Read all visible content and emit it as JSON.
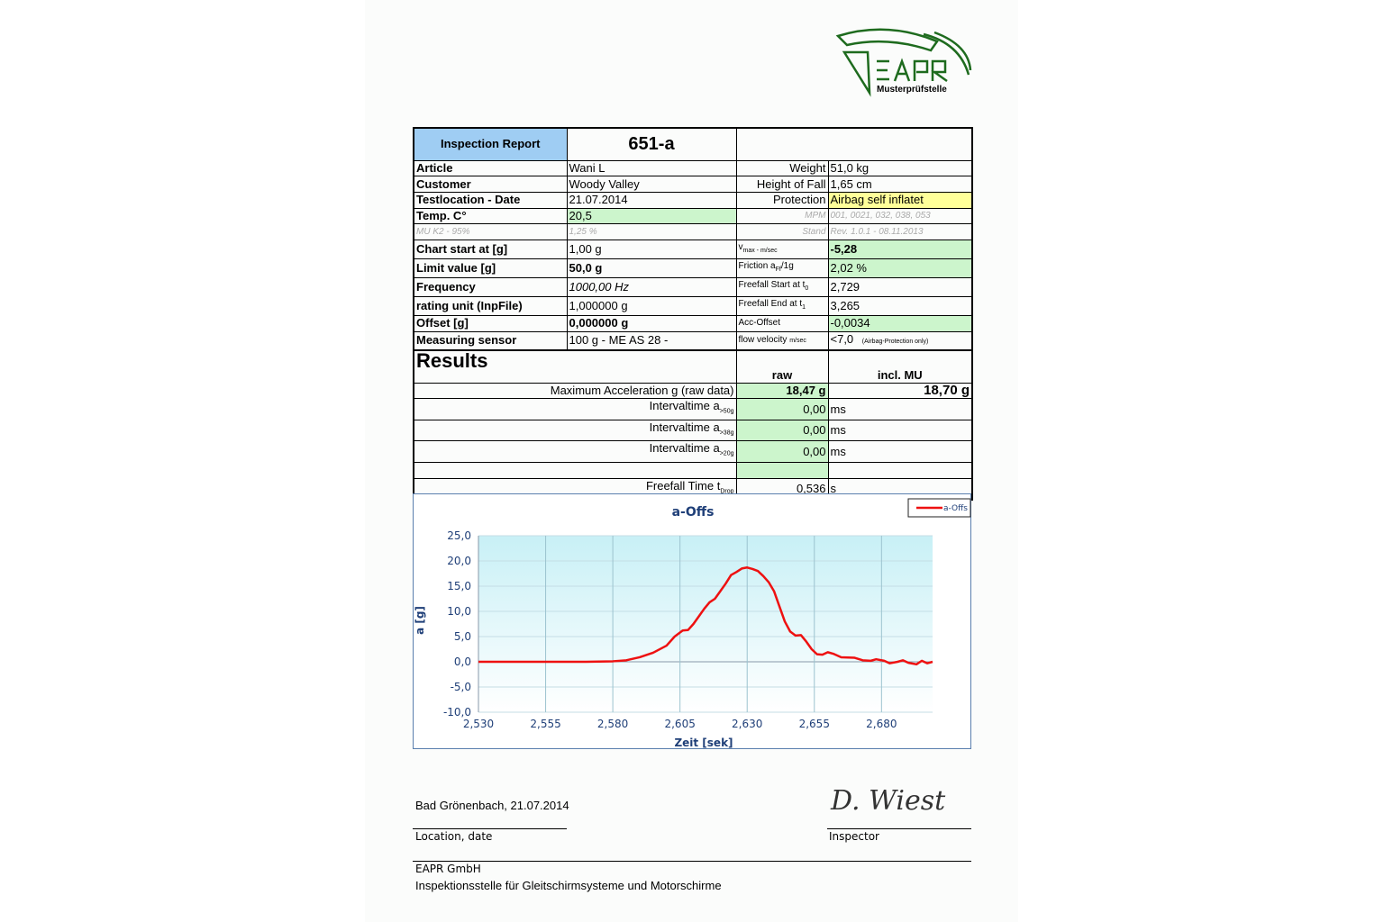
{
  "logo": {
    "text": "EAPR",
    "subtitle": "Musterprüfstelle",
    "color": "#1e6b1e"
  },
  "header": {
    "title": "Inspection Report",
    "number": "651-a"
  },
  "info": {
    "article": {
      "label": "Article",
      "value": "Wani L",
      "rlabel": "Weight",
      "rvalue": "51,0 kg"
    },
    "customer": {
      "label": "Customer",
      "value": "Woody Valley",
      "rlabel": "Height of Fall",
      "rvalue": "1,65 cm"
    },
    "location": {
      "label": "Testlocation - Date",
      "value": "21.07.2014",
      "rlabel": "Protection",
      "rvalue": "Airbag self inflatet"
    },
    "temp": {
      "label": "Temp. C°",
      "value": "20,5",
      "rlabel": "MPM",
      "rvalue": "001, 0021, 032, 038, 053"
    },
    "mu": {
      "label": "MU K2 - 95%",
      "value": "1,25 %",
      "rlabel": "Stand",
      "rvalue": "Rev. 1.0.1 - 08.11.2013"
    },
    "chartstart": {
      "label": "Chart start at [g]",
      "value": "1,00 g",
      "rlabel": "v",
      "rlabel_sub": "max - m/sec",
      "rvalue": "-5,28"
    },
    "limit": {
      "label": "Limit value [g]",
      "value": "50,0 g",
      "rlabel": "Friction a",
      "rlabel_sub": "Ff",
      "rlabel_tail": "/1g",
      "rvalue": "2,02 %"
    },
    "frequency": {
      "label": "Frequency",
      "value": "1000,00 Hz",
      "rlabel": "Freefall Start at t",
      "rlabel_sub": "0",
      "rvalue": "2,729"
    },
    "rating": {
      "label": "rating unit (InpFile)",
      "value": "1,000000 g",
      "rlabel": "Freefall End at t",
      "rlabel_sub": "1",
      "rvalue": "3,265"
    },
    "offset": {
      "label": "Offset [g]",
      "value": "0,000000 g",
      "rlabel": "Acc-Offset",
      "rvalue": "-0,0034"
    },
    "sensor": {
      "label": "Measuring sensor",
      "value": "100 g - ME AS 28 -",
      "rlabel": "flow velocity",
      "rlabel_sub": "m/sec",
      "rvalue": "<7,0",
      "rvalue_note": "(Airbag-Protection only)"
    }
  },
  "results": {
    "title": "Results",
    "col_raw": "raw",
    "col_mu": "incl. MU",
    "maxacc": {
      "label": "Maximum Acceleration g (raw data)",
      "raw": "18,47 g",
      "mu": "18,70 g"
    },
    "i50": {
      "label": "Intervaltime a",
      "sub": ">50g",
      "raw": "0,00",
      "unit": "ms"
    },
    "i38": {
      "label": "Intervaltime a",
      "sub": ">38g",
      "raw": "0,00",
      "unit": "ms"
    },
    "i20": {
      "label": "Intervaltime a",
      "sub": ">20g",
      "raw": "0,00",
      "unit": "ms"
    },
    "freefall": {
      "label": "Freefall Time t",
      "sub": "Drop",
      "raw": "0,536",
      "unit": "s"
    }
  },
  "chart_data": {
    "type": "line",
    "title": "a-Offs",
    "xlabel": "Zeit [sek]",
    "ylabel": "a [g]",
    "xlim": [
      2.53,
      2.699
    ],
    "ylim": [
      -10,
      25
    ],
    "xticks": [
      "2,530",
      "2,555",
      "2,580",
      "2,605",
      "2,630",
      "2,655",
      "2,680"
    ],
    "yticks": [
      "25,0",
      "20,0",
      "15,0",
      "10,0",
      "5,0",
      "0,0",
      "-5,0",
      "-10,0"
    ],
    "grid": true,
    "legend": "top-right",
    "series": [
      {
        "name": "a-Offs",
        "color": "#ee1111",
        "x": [
          2.53,
          2.54,
          2.55,
          2.56,
          2.57,
          2.58,
          2.585,
          2.59,
          2.595,
          2.6,
          2.603,
          2.606,
          2.608,
          2.61,
          2.612,
          2.614,
          2.616,
          2.618,
          2.62,
          2.622,
          2.624,
          2.626,
          2.628,
          2.63,
          2.632,
          2.634,
          2.636,
          2.638,
          2.64,
          2.642,
          2.644,
          2.646,
          2.648,
          2.65,
          2.652,
          2.654,
          2.656,
          2.658,
          2.66,
          2.662,
          2.665,
          2.67,
          2.673,
          2.676,
          2.678,
          2.681,
          2.683,
          2.686,
          2.688,
          2.69,
          2.693,
          2.695,
          2.697,
          2.699
        ],
        "y": [
          0,
          0,
          0,
          0,
          0,
          0.1,
          0.3,
          0.9,
          1.8,
          3.2,
          5.0,
          6.2,
          6.3,
          7.5,
          9.0,
          10.5,
          11.8,
          12.5,
          14.0,
          15.5,
          17.2,
          17.8,
          18.5,
          18.7,
          18.4,
          18.0,
          17.0,
          15.8,
          14.0,
          11.0,
          8.0,
          6.0,
          5.2,
          5.3,
          4.0,
          2.5,
          1.5,
          1.4,
          1.9,
          1.6,
          0.9,
          0.8,
          0.3,
          0.2,
          0.5,
          0.2,
          -0.3,
          0,
          0.3,
          -0.2,
          -0.5,
          0.2,
          -0.3,
          0
        ]
      }
    ]
  },
  "footer": {
    "place_date": "Bad Grönenbach, 21.07.2014",
    "location_label": "Location, date",
    "inspector_label": "Inspector",
    "signature": "D. Wiest",
    "company": "EAPR GmbH",
    "company_desc": "Inspektionsstelle für Gleitschirmsysteme und Motorschirme"
  }
}
